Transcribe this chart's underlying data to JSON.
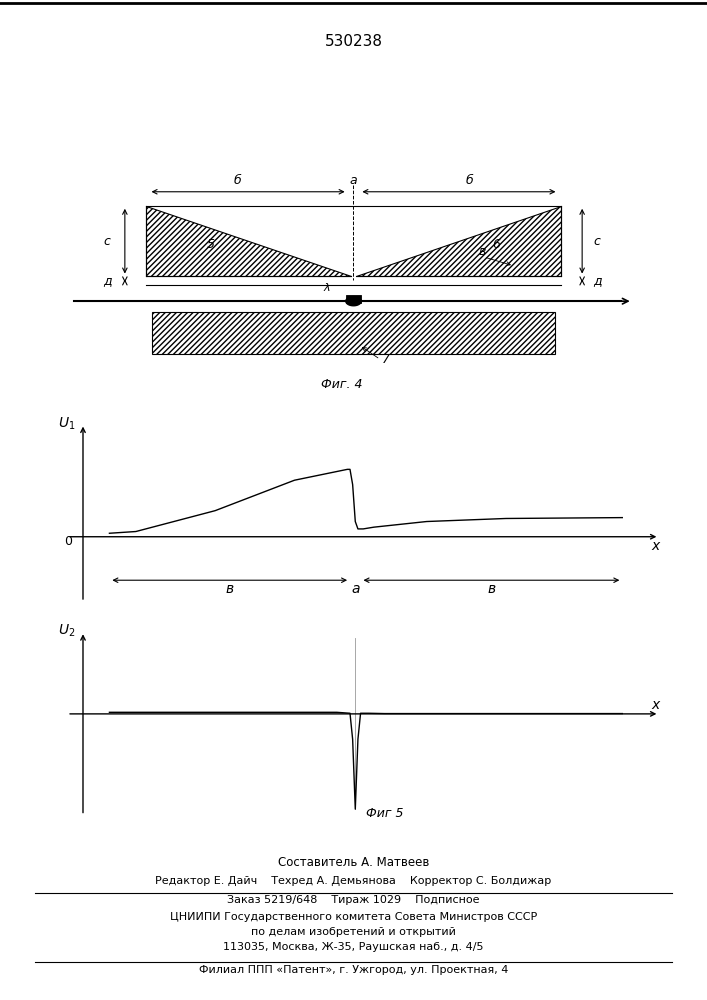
{
  "title": "530238",
  "fig4_label": "Фиг. 4",
  "fig5_label": "Фиг 5",
  "background_color": "#ffffff",
  "line_color": "#000000",
  "footer_lines": [
    "Составитель А. Матвеев",
    "Редактор Е. Дайч    Техред А. Демьянова    Корректор С. Болдижар",
    "Заказ 5219/648    Тираж 1029    Подписное",
    "ЦНИИПИ Государственного комитета Совета Министров СССР",
    "по делам изобретений и открытий",
    "113035, Москва, Ж-35, Раушская наб., д. 4/5",
    "Филиал ППП «Патент», г. Ужгород, ул. Проектная, 4"
  ]
}
